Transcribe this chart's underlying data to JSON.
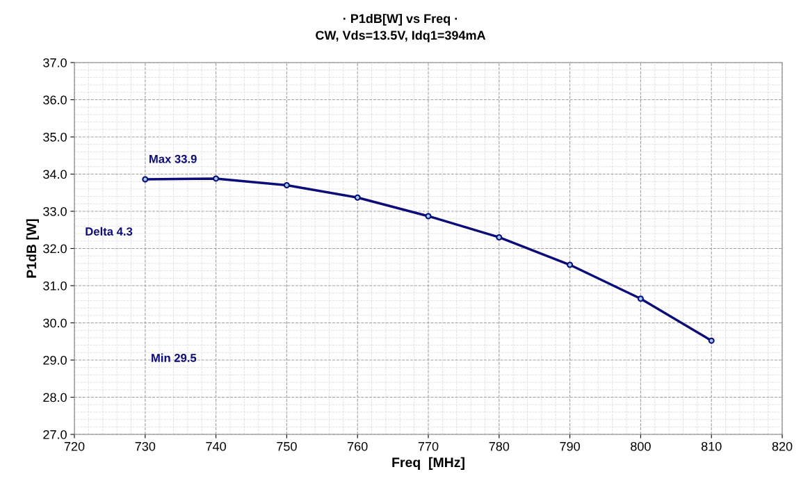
{
  "chart_data": {
    "type": "line",
    "title": "· P1dB[W] vs Freq ·",
    "subtitle": "CW, Vds=13.5V, Idq1=394mA",
    "xlabel": "Freq  [MHz]",
    "ylabel": "P1dB [W]",
    "x": [
      730,
      740,
      750,
      760,
      770,
      780,
      790,
      800,
      810
    ],
    "series": [
      {
        "color": "#0c0c78",
        "values": [
          33.86,
          33.88,
          33.7,
          33.37,
          32.87,
          32.3,
          31.56,
          30.65,
          29.52
        ]
      }
    ],
    "xlim": [
      720,
      820
    ],
    "xticks": [
      720,
      730,
      740,
      750,
      760,
      770,
      780,
      790,
      800,
      810,
      820
    ],
    "ylim": [
      27,
      37
    ],
    "yticks": [
      {
        "value": 27,
        "label": "27.0"
      },
      {
        "value": 28,
        "label": "28.0"
      },
      {
        "value": 29,
        "label": "29.0"
      },
      {
        "value": 30,
        "label": "30.0"
      },
      {
        "value": 31,
        "label": "31.0"
      },
      {
        "value": 32,
        "label": "32.0"
      },
      {
        "value": 33,
        "label": "33.0"
      },
      {
        "value": 34,
        "label": "34.0"
      },
      {
        "value": 35,
        "label": "35.0"
      },
      {
        "value": 36,
        "label": "36.0"
      },
      {
        "value": 37,
        "label": "37.0"
      }
    ],
    "annotations": [
      "Max 33.9",
      "Delta 4.3",
      "Min 29.5"
    ],
    "grid": true,
    "marker": "circle",
    "line_style": "solid",
    "legend": false
  }
}
